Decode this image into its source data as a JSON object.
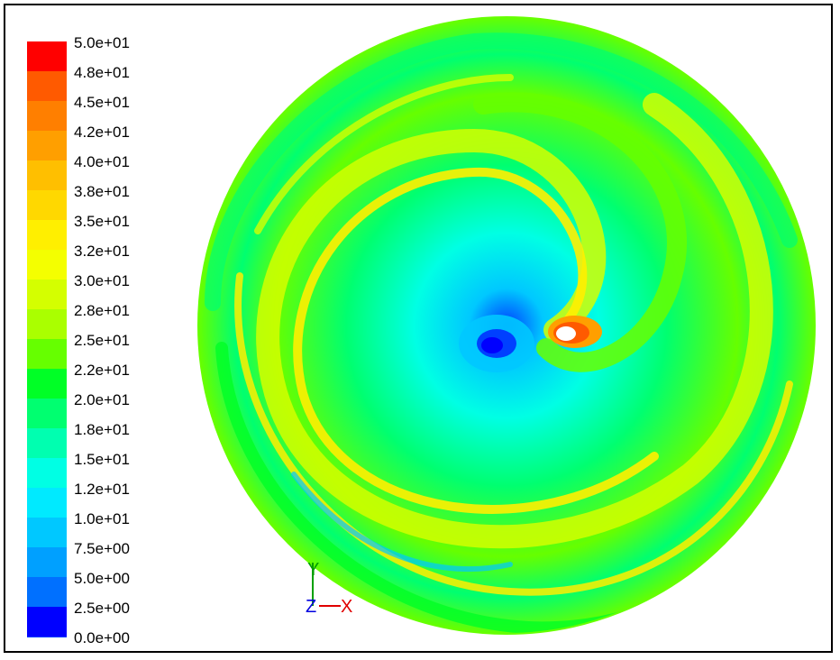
{
  "chart_data": {
    "type": "heatmap",
    "title": "",
    "colormap": [
      {
        "value": 50.0,
        "label": "5.0e+01",
        "color": "#ff0000"
      },
      {
        "value": 47.5,
        "label": "4.8e+01",
        "color": "#ff5a00"
      },
      {
        "value": 45.0,
        "label": "4.5e+01",
        "color": "#ff7f00"
      },
      {
        "value": 42.5,
        "label": "4.2e+01",
        "color": "#ff9f00"
      },
      {
        "value": 40.0,
        "label": "4.0e+01",
        "color": "#ffbf00"
      },
      {
        "value": 37.5,
        "label": "3.8e+01",
        "color": "#ffd800"
      },
      {
        "value": 35.0,
        "label": "3.5e+01",
        "color": "#ffef00"
      },
      {
        "value": 32.5,
        "label": "3.2e+01",
        "color": "#f4ff00"
      },
      {
        "value": 30.0,
        "label": "3.0e+01",
        "color": "#d4ff00"
      },
      {
        "value": 27.5,
        "label": "2.8e+01",
        "color": "#aaff00"
      },
      {
        "value": 25.0,
        "label": "2.5e+01",
        "color": "#66ff00"
      },
      {
        "value": 22.5,
        "label": "2.2e+01",
        "color": "#00ff26"
      },
      {
        "value": 20.0,
        "label": "2.0e+01",
        "color": "#00ff70"
      },
      {
        "value": 17.5,
        "label": "1.8e+01",
        "color": "#00ffb0"
      },
      {
        "value": 15.0,
        "label": "1.5e+01",
        "color": "#00ffe4"
      },
      {
        "value": 12.5,
        "label": "1.2e+01",
        "color": "#00eaff"
      },
      {
        "value": 10.0,
        "label": "1.0e+01",
        "color": "#00c8ff"
      },
      {
        "value": 7.5,
        "label": "7.5e+00",
        "color": "#00a0ff"
      },
      {
        "value": 5.0,
        "label": "5.0e+00",
        "color": "#0070ff"
      },
      {
        "value": 2.5,
        "label": "2.5e+00",
        "color": "#0040ff"
      },
      {
        "value": 0.0,
        "label": "0.0e+00",
        "color": "#0000ff"
      }
    ],
    "range": [
      0,
      50
    ],
    "axes_triad": {
      "vertical": "Y",
      "horizontal": "X",
      "out_of_plane": "Z"
    },
    "axis_colors": {
      "y": "#00a000",
      "x": "#e00000",
      "z": "#0000e0"
    }
  }
}
